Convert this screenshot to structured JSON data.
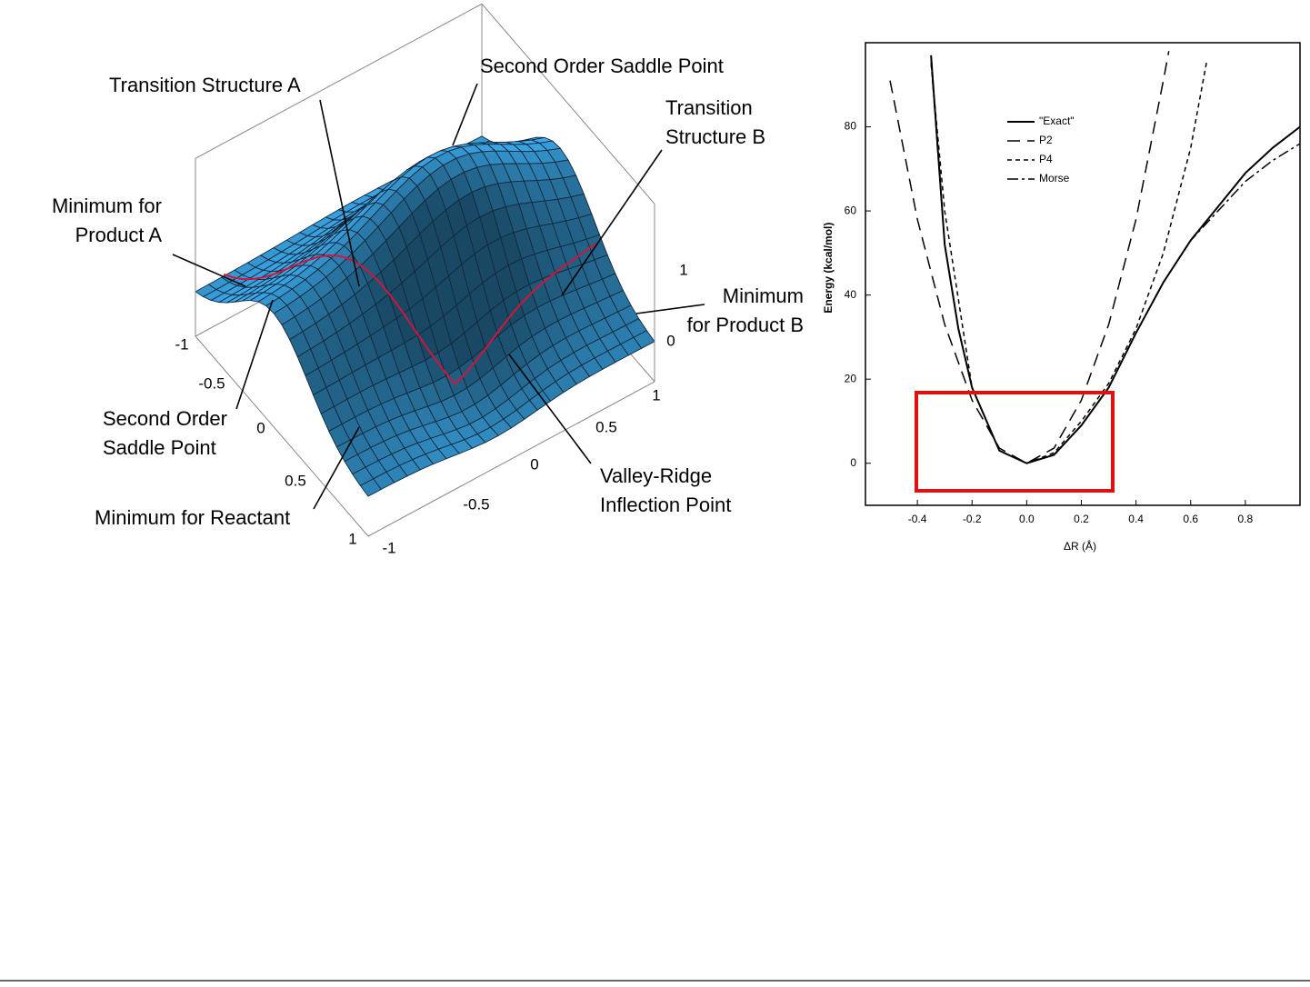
{
  "diagram": {
    "labels": {
      "second_order_saddle_top": [
        "Second Order Saddle Point"
      ],
      "transition_a": [
        "Transition Structure A"
      ],
      "transition_b": [
        "Transition",
        "Structure B"
      ],
      "product_a": [
        "Minimum for",
        "Product A"
      ],
      "product_b": [
        "Minimum",
        "for Product B"
      ],
      "second_order_saddle_left": [
        "Second Order",
        "Saddle Point"
      ],
      "reactant": [
        "Minimum for Reactant"
      ],
      "valley_ridge": [
        "Valley-Ridge",
        "Inflection Point"
      ]
    },
    "left_axis_ticks": [
      "-1",
      "-0.5",
      "0",
      "0.5",
      "1"
    ],
    "front_axis_ticks": [
      "-1",
      "-0.5",
      "0",
      "0.5",
      "1"
    ],
    "vertical_axis_ticks": [
      "1",
      "0"
    ]
  },
  "chart_data": {
    "type": "line",
    "xlabel": "ΔR (Å)",
    "ylabel": "Energy (kcal/mol)",
    "xlim": [
      -0.59,
      1.0
    ],
    "ylim": [
      -10,
      100
    ],
    "xticks": [
      -0.4,
      -0.2,
      {
        "value": 0,
        "label": "0.0"
      },
      0.2,
      0.4,
      0.6,
      0.8
    ],
    "yticks": [
      0,
      20,
      40,
      60,
      80
    ],
    "series": [
      {
        "name": "\"Exact\"",
        "color": "#000000",
        "style": "solid",
        "x": [
          -0.35,
          -0.3,
          -0.25,
          -0.2,
          -0.1,
          0,
          0.1,
          0.2,
          0.3,
          0.4,
          0.5,
          0.6,
          0.7,
          0.8,
          0.9,
          1.0
        ],
        "values": [
          97,
          52,
          32,
          18,
          3,
          0,
          2,
          9,
          18,
          31,
          43,
          53,
          61,
          69,
          75,
          80
        ]
      },
      {
        "name": "P2",
        "color": "#000000",
        "style": "long-dash",
        "x": [
          -0.5,
          -0.4,
          -0.3,
          -0.2,
          -0.1,
          0,
          0.1,
          0.2,
          0.3,
          0.4,
          0.5,
          0.52
        ],
        "values": [
          91,
          58,
          33,
          15,
          3.6,
          0,
          3.6,
          15,
          33,
          58,
          91,
          98
        ]
      },
      {
        "name": "P4",
        "color": "#000000",
        "style": "short-dash",
        "x": [
          -0.35,
          -0.3,
          -0.2,
          -0.1,
          0,
          0.1,
          0.2,
          0.3,
          0.4,
          0.5,
          0.6,
          0.66
        ],
        "values": [
          95,
          60,
          18,
          3,
          0,
          2.5,
          10,
          19,
          32,
          50,
          75,
          96
        ]
      },
      {
        "name": "Morse",
        "color": "#000000",
        "style": "dash-dot",
        "x": [
          -0.35,
          -0.3,
          -0.25,
          -0.2,
          -0.1,
          0,
          0.1,
          0.2,
          0.3,
          0.4,
          0.5,
          0.6,
          0.7,
          0.8,
          0.9,
          1.0
        ],
        "values": [
          96,
          52,
          32,
          18,
          3,
          0,
          2,
          9,
          18,
          31,
          43,
          53,
          60,
          67,
          72,
          76
        ]
      }
    ]
  }
}
